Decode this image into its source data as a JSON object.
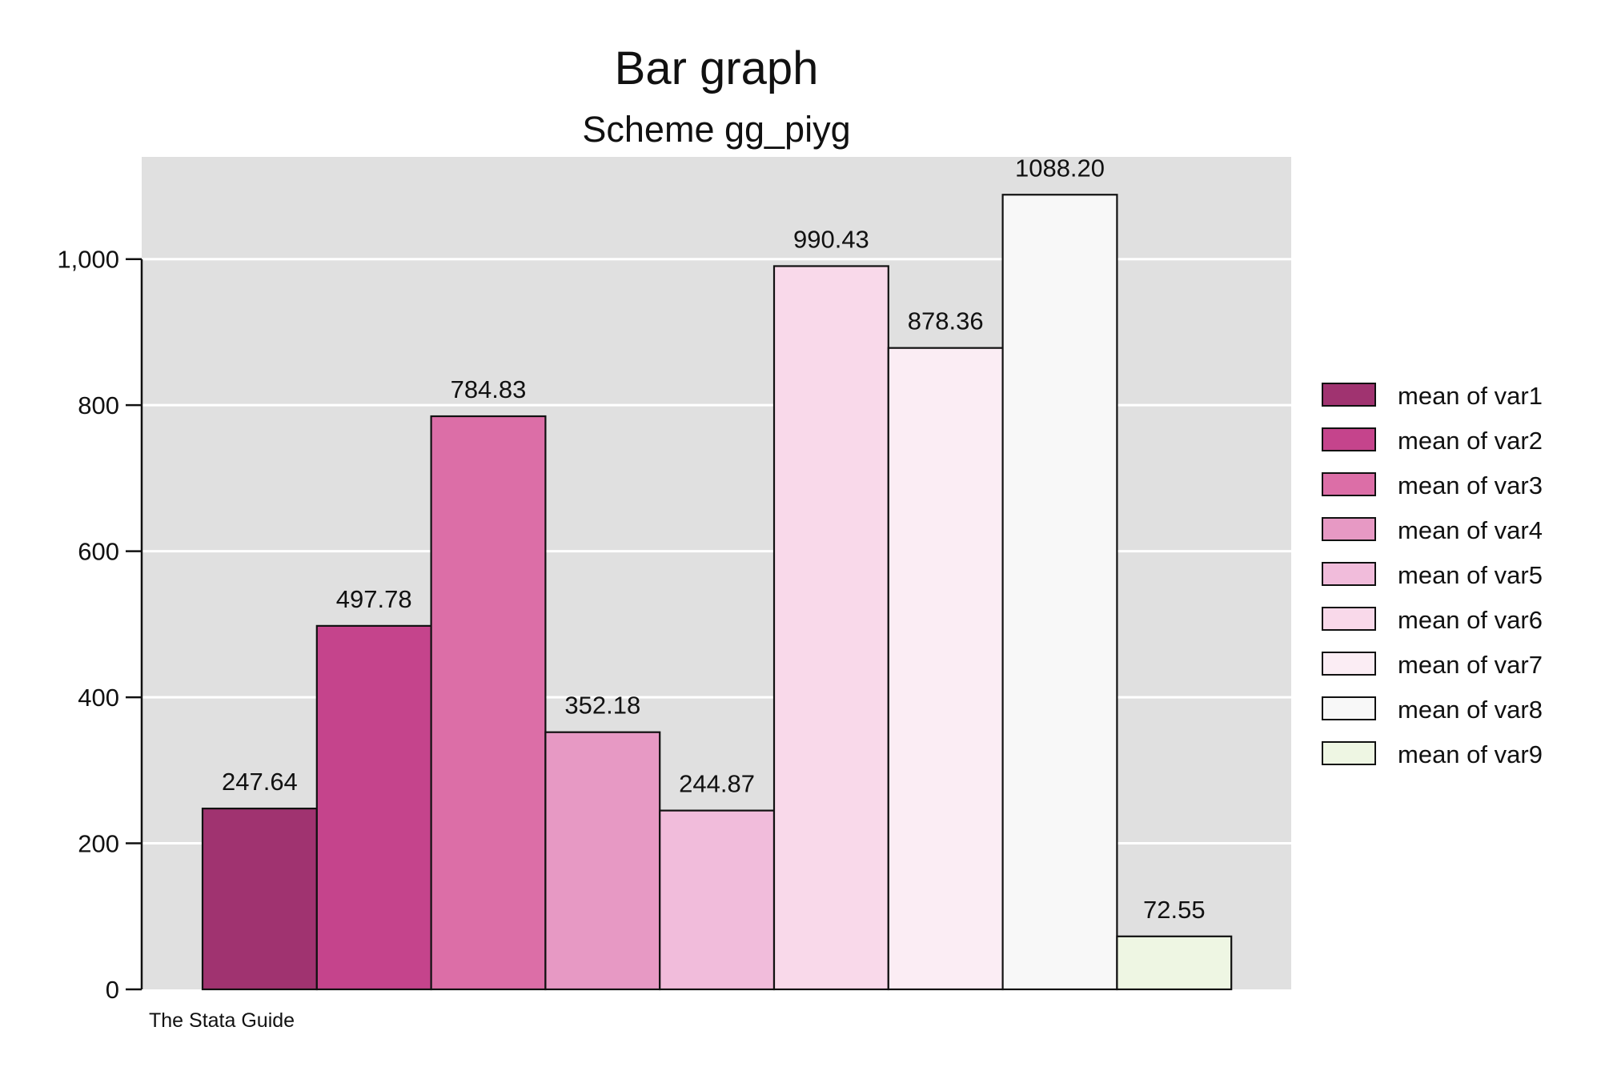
{
  "chart_data": {
    "type": "bar",
    "title": "Bar graph",
    "subtitle": "Scheme gg_piyg",
    "xlabel": "",
    "ylabel": "",
    "ylim": [
      0,
      1140
    ],
    "yticks": [
      0,
      200,
      400,
      600,
      800,
      1000
    ],
    "ytick_labels": [
      "0",
      "200",
      "400",
      "600",
      "800",
      "1,000"
    ],
    "grid": true,
    "legend_position": "right",
    "note": "The Stata Guide",
    "plot_background": "#e0e0e0",
    "series": [
      {
        "name": "mean of var1",
        "value": 247.64,
        "label": "247.64",
        "color": "#a03370"
      },
      {
        "name": "mean of var2",
        "value": 497.78,
        "label": "497.78",
        "color": "#c5448c"
      },
      {
        "name": "mean of var3",
        "value": 784.83,
        "label": "784.83",
        "color": "#dc6ea7"
      },
      {
        "name": "mean of var4",
        "value": 352.18,
        "label": "352.18",
        "color": "#e799c4"
      },
      {
        "name": "mean of var5",
        "value": 244.87,
        "label": "244.87",
        "color": "#f1bcdb"
      },
      {
        "name": "mean of var6",
        "value": 990.43,
        "label": "990.43",
        "color": "#f9d9ea"
      },
      {
        "name": "mean of var7",
        "value": 878.36,
        "label": "878.36",
        "color": "#fbedf4"
      },
      {
        "name": "mean of var8",
        "value": 1088.2,
        "label": "1088.20",
        "color": "#f8f8f8"
      },
      {
        "name": "mean of var9",
        "value": 72.55,
        "label": "72.55",
        "color": "#eef6e3"
      }
    ]
  }
}
